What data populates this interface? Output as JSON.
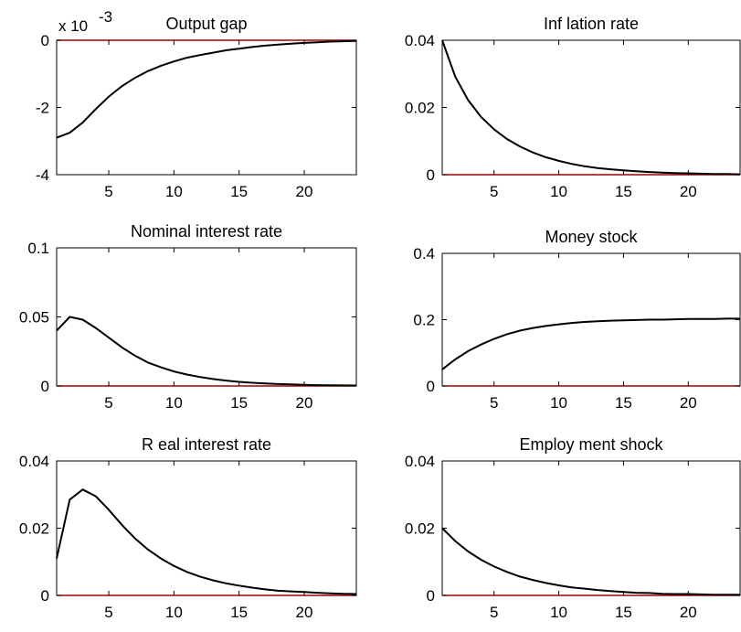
{
  "chart_data": [
    {
      "type": "line",
      "title": "Output gap",
      "exponent_label": "x 10",
      "exponent_power": "-3",
      "x": [
        1,
        2,
        3,
        4,
        5,
        6,
        7,
        8,
        9,
        10,
        11,
        12,
        13,
        14,
        15,
        16,
        17,
        18,
        19,
        20,
        21,
        22,
        23,
        24
      ],
      "series": [
        {
          "values": [
            -2.9,
            -2.75,
            -2.45,
            -2.05,
            -1.68,
            -1.37,
            -1.12,
            -0.92,
            -0.76,
            -0.63,
            -0.52,
            -0.44,
            -0.37,
            -0.3,
            -0.25,
            -0.2,
            -0.16,
            -0.13,
            -0.1,
            -0.08,
            -0.06,
            -0.04,
            -0.03,
            -0.02
          ]
        }
      ],
      "xlim": [
        1,
        24
      ],
      "ylim": [
        -4,
        0
      ],
      "xticks": [
        5,
        10,
        15,
        20
      ],
      "xtick_labels": [
        "5",
        "10",
        "15",
        "20"
      ],
      "yticks": [
        -4,
        -2,
        0
      ],
      "ytick_labels": [
        "-4",
        "-2",
        "0"
      ],
      "zero_line_color": "#a40000"
    },
    {
      "type": "line",
      "title": "Inf lation rate",
      "x": [
        1,
        2,
        3,
        4,
        5,
        6,
        7,
        8,
        9,
        10,
        11,
        12,
        13,
        14,
        15,
        16,
        17,
        18,
        19,
        20,
        21,
        22,
        23,
        24
      ],
      "series": [
        {
          "values": [
            0.04,
            0.0292,
            0.0222,
            0.0172,
            0.0135,
            0.0106,
            0.0084,
            0.0066,
            0.0052,
            0.0041,
            0.0032,
            0.0025,
            0.002,
            0.0016,
            0.0013,
            0.001,
            0.0008,
            0.0006,
            0.0005,
            0.0004,
            0.0003,
            0.0002,
            0.0002,
            0.0001
          ]
        }
      ],
      "xlim": [
        1,
        24
      ],
      "ylim": [
        0,
        0.04
      ],
      "xticks": [
        5,
        10,
        15,
        20
      ],
      "xtick_labels": [
        "5",
        "10",
        "15",
        "20"
      ],
      "yticks": [
        0,
        0.02,
        0.04
      ],
      "ytick_labels": [
        "0",
        "0.02",
        "0.04"
      ],
      "zero_line_color": "#a40000"
    },
    {
      "type": "line",
      "title": "Nominal interest rate",
      "x": [
        1,
        2,
        3,
        4,
        5,
        6,
        7,
        8,
        9,
        10,
        11,
        12,
        13,
        14,
        15,
        16,
        17,
        18,
        19,
        20,
        21,
        22,
        23,
        24
      ],
      "series": [
        {
          "values": [
            0.04,
            0.05,
            0.048,
            0.042,
            0.035,
            0.028,
            0.022,
            0.017,
            0.0135,
            0.0105,
            0.0083,
            0.0065,
            0.005,
            0.0039,
            0.003,
            0.0023,
            0.0018,
            0.0014,
            0.0011,
            0.0008,
            0.0006,
            0.0005,
            0.0004,
            0.0003
          ]
        }
      ],
      "xlim": [
        1,
        24
      ],
      "ylim": [
        0,
        0.1
      ],
      "xticks": [
        5,
        10,
        15,
        20
      ],
      "xtick_labels": [
        "5",
        "10",
        "15",
        "20"
      ],
      "yticks": [
        0,
        0.05,
        0.1
      ],
      "ytick_labels": [
        "0",
        "0.05",
        "0.1"
      ],
      "zero_line_color": "#a40000"
    },
    {
      "type": "line",
      "title": "Money  stock",
      "x": [
        1,
        2,
        3,
        4,
        5,
        6,
        7,
        8,
        9,
        10,
        11,
        12,
        13,
        14,
        15,
        16,
        17,
        18,
        19,
        20,
        21,
        22,
        23,
        24
      ],
      "series": [
        {
          "values": [
            0.05,
            0.08,
            0.105,
            0.125,
            0.142,
            0.156,
            0.167,
            0.175,
            0.181,
            0.186,
            0.19,
            0.193,
            0.195,
            0.197,
            0.198,
            0.199,
            0.2,
            0.2,
            0.201,
            0.202,
            0.202,
            0.202,
            0.203,
            0.203
          ]
        }
      ],
      "xlim": [
        1,
        24
      ],
      "ylim": [
        0,
        0.4
      ],
      "xticks": [
        5,
        10,
        15,
        20
      ],
      "xtick_labels": [
        "5",
        "10",
        "15",
        "20"
      ],
      "yticks": [
        0,
        0.2,
        0.4
      ],
      "ytick_labels": [
        "0",
        "0.2",
        "0.4"
      ],
      "zero_line_color": "#a40000"
    },
    {
      "type": "line",
      "title": "R eal interest rate",
      "x": [
        1,
        2,
        3,
        4,
        5,
        6,
        7,
        8,
        9,
        10,
        11,
        12,
        13,
        14,
        15,
        16,
        17,
        18,
        19,
        20,
        21,
        22,
        23,
        24
      ],
      "series": [
        {
          "values": [
            0.011,
            0.0285,
            0.0315,
            0.0295,
            0.0255,
            0.021,
            0.017,
            0.0137,
            0.011,
            0.0088,
            0.007,
            0.0056,
            0.0045,
            0.0036,
            0.0029,
            0.0023,
            0.0018,
            0.0014,
            0.0012,
            0.001,
            0.0008,
            0.0006,
            0.0005,
            0.0004
          ]
        }
      ],
      "xlim": [
        1,
        24
      ],
      "ylim": [
        0,
        0.04
      ],
      "xticks": [
        5,
        10,
        15,
        20
      ],
      "xtick_labels": [
        "5",
        "10",
        "15",
        "20"
      ],
      "yticks": [
        0,
        0.02,
        0.04
      ],
      "ytick_labels": [
        "0",
        "0.02",
        "0.04"
      ],
      "zero_line_color": "#a40000"
    },
    {
      "type": "line",
      "title": "Employ ment shock",
      "x": [
        1,
        2,
        3,
        4,
        5,
        6,
        7,
        8,
        9,
        10,
        11,
        12,
        13,
        14,
        15,
        16,
        17,
        18,
        19,
        20,
        21,
        22,
        23,
        24
      ],
      "series": [
        {
          "values": [
            0.02,
            0.0162,
            0.0131,
            0.0106,
            0.0086,
            0.007,
            0.0056,
            0.0046,
            0.0037,
            0.003,
            0.0024,
            0.002,
            0.0016,
            0.0013,
            0.001,
            0.0008,
            0.0007,
            0.0005,
            0.0004,
            0.0004,
            0.0003,
            0.0002,
            0.0002,
            0.0002
          ]
        }
      ],
      "xlim": [
        1,
        24
      ],
      "ylim": [
        0,
        0.04
      ],
      "xticks": [
        5,
        10,
        15,
        20
      ],
      "xtick_labels": [
        "5",
        "10",
        "15",
        "20"
      ],
      "yticks": [
        0,
        0.02,
        0.04
      ],
      "ytick_labels": [
        "0",
        "0.02",
        "0.04"
      ],
      "zero_line_color": "#a40000"
    }
  ]
}
